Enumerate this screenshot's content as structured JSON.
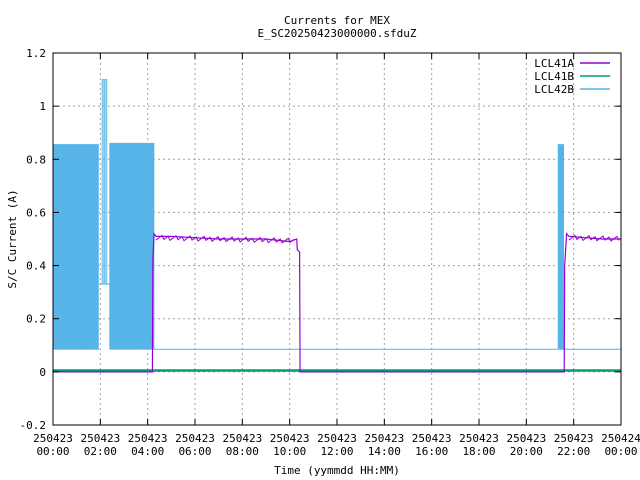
{
  "chart_data": {
    "type": "line",
    "title": "Currents for MEX",
    "subtitle": "E_SC20250423000000.sfduZ",
    "xlabel": "Time (yymmdd HH:MM)",
    "ylabel": "S/C Current (A)",
    "xlim": [
      0,
      24
    ],
    "ylim": [
      -0.2,
      1.2
    ],
    "grid": true,
    "legend_position": "top-right",
    "yticks": [
      "-0.2",
      "0",
      "0.2",
      "0.4",
      "0.6",
      "0.8",
      "1",
      "1.2"
    ],
    "xticks": [
      {
        "x": 0,
        "date": "250423",
        "time": "00:00"
      },
      {
        "x": 2,
        "date": "250423",
        "time": "02:00"
      },
      {
        "x": 4,
        "date": "250423",
        "time": "04:00"
      },
      {
        "x": 6,
        "date": "250423",
        "time": "06:00"
      },
      {
        "x": 8,
        "date": "250423",
        "time": "08:00"
      },
      {
        "x": 10,
        "date": "250423",
        "time": "10:00"
      },
      {
        "x": 12,
        "date": "250423",
        "time": "12:00"
      },
      {
        "x": 14,
        "date": "250423",
        "time": "14:00"
      },
      {
        "x": 16,
        "date": "250423",
        "time": "16:00"
      },
      {
        "x": 18,
        "date": "250423",
        "time": "18:00"
      },
      {
        "x": 20,
        "date": "250423",
        "time": "20:00"
      },
      {
        "x": 22,
        "date": "250423",
        "time": "22:00"
      },
      {
        "x": 24,
        "date": "250424",
        "time": "00:00"
      }
    ],
    "series": [
      {
        "name": "LCL41A",
        "color": "#9400d3",
        "x": [
          0,
          4.2,
          4.22,
          4.27,
          4.35,
          5.0,
          6.0,
          7.0,
          8.0,
          9.0,
          10.0,
          10.3,
          10.32,
          10.42,
          10.44,
          21.6,
          21.62,
          21.7,
          21.8,
          22.5,
          23.2,
          24.0
        ],
        "y": [
          0,
          0,
          0.42,
          0.52,
          0.51,
          0.51,
          0.505,
          0.5,
          0.5,
          0.5,
          0.49,
          0.5,
          0.46,
          0.45,
          0,
          0,
          0.4,
          0.52,
          0.51,
          0.505,
          0.5,
          0.5
        ]
      },
      {
        "name": "LCL41B",
        "color": "#009e73",
        "x": [
          0,
          24
        ],
        "y": [
          0.005,
          0.005
        ]
      },
      {
        "name": "LCL42B",
        "color": "#56b4e9",
        "segments": [
          {
            "x0": 0,
            "x1": 1.95,
            "low": 0.085,
            "high": 0.855,
            "pulses": 26
          },
          {
            "x0": 2.4,
            "x1": 4.3,
            "low": 0.085,
            "high": 0.86,
            "pulses": 24
          },
          {
            "x0": 21.35,
            "x1": 21.6,
            "low": 0.085,
            "high": 0.855,
            "pulses": 4
          }
        ],
        "spikes": [
          {
            "x0": 2.08,
            "x1": 2.15,
            "low": 0.33,
            "high": 1.1
          },
          {
            "x0": 2.2,
            "x1": 2.27,
            "low": 0.33,
            "high": 1.1
          }
        ],
        "flat": [
          {
            "x0": 1.95,
            "x1": 2.4,
            "y": 0.33
          },
          {
            "x0": 4.3,
            "x1": 21.35,
            "y": 0.085
          },
          {
            "x0": 21.6,
            "x1": 24,
            "y": 0.085
          }
        ]
      }
    ]
  }
}
